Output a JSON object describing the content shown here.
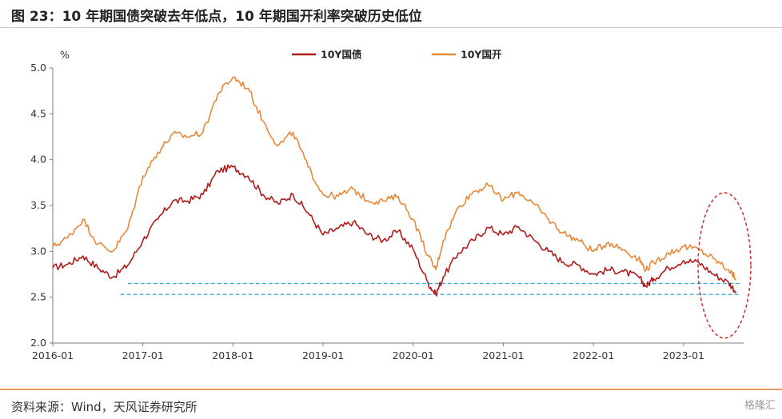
{
  "title": "图 23：10 年期国债突破去年低点，10 年期国开利率突破历史低位",
  "source": "资料来源：Wind，天风证券研究所",
  "watermark": "格隆汇",
  "colors": {
    "treasury": "#b01c1c",
    "cdb": "#e8893a",
    "reference_line": "#3aa8d8",
    "highlight_ellipse": "#d42a2a",
    "axis": "#7f7f7f"
  },
  "chart_data": {
    "type": "line",
    "title": "",
    "xlabel": "",
    "ylabel": "%",
    "ylim": [
      2.0,
      5.0
    ],
    "y_ticks": [
      "2.0",
      "2.5",
      "3.0",
      "3.5",
      "4.0",
      "4.5",
      "5.0"
    ],
    "xlim": [
      "2016-01",
      "2023-09"
    ],
    "x_ticks": [
      "2016-01",
      "2017-01",
      "2018-01",
      "2019-01",
      "2020-01",
      "2021-01",
      "2022-01",
      "2023-01"
    ],
    "legend": "top-center",
    "grid": false,
    "x": [
      "2016-01",
      "2016-03",
      "2016-05",
      "2016-07",
      "2016-09",
      "2016-11",
      "2017-01",
      "2017-03",
      "2017-05",
      "2017-07",
      "2017-09",
      "2017-11",
      "2018-01",
      "2018-03",
      "2018-05",
      "2018-07",
      "2018-09",
      "2018-11",
      "2019-01",
      "2019-03",
      "2019-05",
      "2019-07",
      "2019-09",
      "2019-11",
      "2020-01",
      "2020-03",
      "2020-04",
      "2020-05",
      "2020-07",
      "2020-09",
      "2020-11",
      "2021-01",
      "2021-03",
      "2021-05",
      "2021-07",
      "2021-09",
      "2021-11",
      "2022-01",
      "2022-03",
      "2022-05",
      "2022-07",
      "2022-08",
      "2022-09",
      "2022-11",
      "2023-01",
      "2023-03",
      "2023-05",
      "2023-07",
      "2023-08"
    ],
    "series": [
      {
        "name": "10Y国债",
        "values": [
          2.82,
          2.86,
          2.95,
          2.82,
          2.72,
          2.85,
          3.12,
          3.35,
          3.55,
          3.55,
          3.62,
          3.88,
          3.92,
          3.82,
          3.62,
          3.52,
          3.62,
          3.42,
          3.18,
          3.25,
          3.32,
          3.18,
          3.12,
          3.22,
          3.02,
          2.65,
          2.53,
          2.72,
          2.98,
          3.12,
          3.26,
          3.18,
          3.27,
          3.13,
          3.0,
          2.88,
          2.85,
          2.75,
          2.8,
          2.78,
          2.72,
          2.62,
          2.7,
          2.82,
          2.9,
          2.88,
          2.75,
          2.66,
          2.56
        ]
      },
      {
        "name": "10Y国开",
        "values": [
          3.05,
          3.15,
          3.35,
          3.08,
          3.0,
          3.25,
          3.82,
          4.08,
          4.28,
          4.25,
          4.3,
          4.72,
          4.9,
          4.78,
          4.42,
          4.15,
          4.3,
          3.92,
          3.62,
          3.6,
          3.68,
          3.55,
          3.55,
          3.6,
          3.35,
          2.95,
          2.8,
          3.12,
          3.48,
          3.65,
          3.72,
          3.56,
          3.65,
          3.52,
          3.35,
          3.2,
          3.12,
          3.0,
          3.1,
          3.02,
          2.92,
          2.8,
          2.88,
          2.98,
          3.05,
          3.02,
          2.92,
          2.8,
          2.7
        ]
      }
    ],
    "reference_lines": [
      2.65,
      2.53
    ]
  }
}
